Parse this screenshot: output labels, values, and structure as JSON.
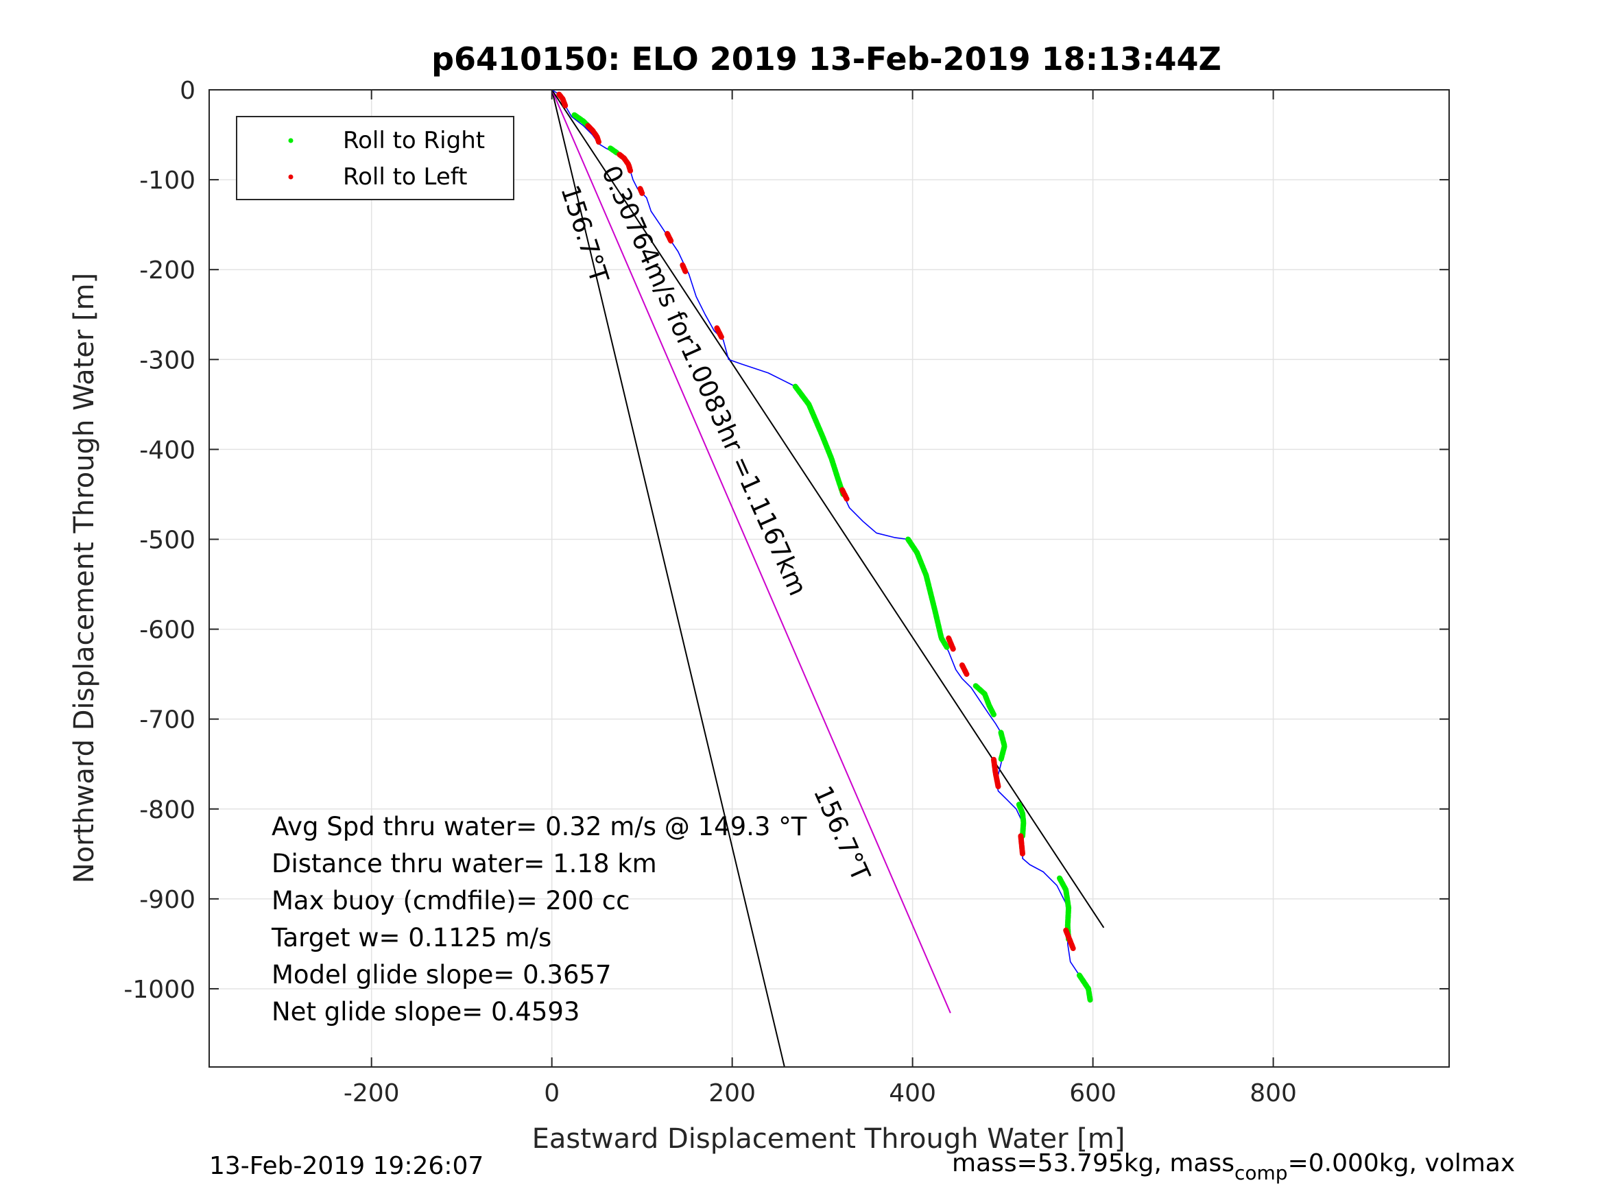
{
  "chart_data": {
    "type": "line",
    "title": "p6410150: ELO 2019 13-Feb-2019 18:13:44Z",
    "xlabel": "Eastward Displacement Through Water [m]",
    "ylabel": "Northward Displacement Through Water [m]",
    "xlim": [
      -380,
      995
    ],
    "ylim": [
      -1087,
      0
    ],
    "xticks": [
      -200,
      0,
      200,
      400,
      600,
      800
    ],
    "yticks": [
      0,
      -100,
      -200,
      -300,
      -400,
      -500,
      -600,
      -700,
      -800,
      -900,
      -1000
    ],
    "grid": true,
    "legend": {
      "placement": "top-left",
      "entries": [
        {
          "label": "Roll to Right",
          "color": "#00ee00"
        },
        {
          "label": "Roll to Left",
          "color": "#ee0000"
        }
      ]
    },
    "track": {
      "name": "",
      "color": "#0000ff",
      "x": [
        0,
        8,
        15,
        22,
        35,
        45,
        52,
        60,
        70,
        80,
        87,
        90,
        95,
        100,
        105,
        110,
        120,
        130,
        140,
        147,
        152,
        160,
        170,
        180,
        190,
        196,
        210,
        240,
        270,
        285,
        300,
        310,
        318,
        323,
        330,
        345,
        360,
        380,
        395,
        405,
        415,
        425,
        432,
        440,
        448,
        455,
        465,
        475,
        485,
        492,
        498,
        502,
        498,
        493,
        495,
        505,
        515,
        522,
        523,
        522,
        530,
        545,
        560,
        570,
        573,
        572,
        575,
        585,
        595,
        597
      ],
      "y": [
        0,
        -5,
        -18,
        -30,
        -40,
        -50,
        -60,
        -65,
        -70,
        -75,
        -90,
        -100,
        -110,
        -115,
        -120,
        -135,
        -150,
        -165,
        -180,
        -195,
        -205,
        -230,
        -250,
        -268,
        -278,
        -300,
        -305,
        -315,
        -330,
        -350,
        -385,
        -410,
        -435,
        -450,
        -465,
        -480,
        -493,
        -498,
        -500,
        -515,
        -540,
        -580,
        -610,
        -625,
        -645,
        -655,
        -665,
        -680,
        -695,
        -705,
        -715,
        -730,
        -750,
        -770,
        -780,
        -790,
        -800,
        -815,
        -840,
        -855,
        -862,
        -870,
        -885,
        -905,
        -930,
        -950,
        -970,
        -985,
        -1000,
        -1013
      ]
    },
    "roll_right_segments": [
      {
        "x": [
          25,
          35,
          40
        ],
        "y": [
          -28,
          -35,
          -40
        ]
      },
      {
        "x": [
          65,
          72
        ],
        "y": [
          -65,
          -70
        ]
      },
      {
        "x": [
          270,
          285,
          300,
          310,
          318,
          323
        ],
        "y": [
          -330,
          -350,
          -385,
          -410,
          -435,
          -450
        ]
      },
      {
        "x": [
          395,
          405,
          415,
          425,
          432,
          438
        ],
        "y": [
          -500,
          -515,
          -540,
          -580,
          -610,
          -620
        ]
      },
      {
        "x": [
          470,
          480,
          485,
          490
        ],
        "y": [
          -663,
          -672,
          -685,
          -695
        ]
      },
      {
        "x": [
          498,
          502,
          498
        ],
        "y": [
          -715,
          -730,
          -745
        ]
      },
      {
        "x": [
          518,
          522,
          523,
          522
        ],
        "y": [
          -795,
          -805,
          -815,
          -830
        ]
      },
      {
        "x": [
          563,
          570,
          573,
          572,
          573
        ],
        "y": [
          -877,
          -890,
          -910,
          -930,
          -945
        ]
      },
      {
        "x": [
          585,
          595,
          597
        ],
        "y": [
          -985,
          -1000,
          -1013
        ]
      }
    ],
    "roll_left_segments": [
      {
        "x": [
          8,
          12,
          15
        ],
        "y": [
          -5,
          -10,
          -18
        ]
      },
      {
        "x": [
          40,
          45,
          50,
          52
        ],
        "y": [
          -40,
          -45,
          -52,
          -58
        ]
      },
      {
        "x": [
          75,
          80,
          85,
          87
        ],
        "y": [
          -72,
          -76,
          -83,
          -90
        ]
      },
      {
        "x": [
          98,
          100
        ],
        "y": [
          -110,
          -115
        ]
      },
      {
        "x": [
          128,
          132
        ],
        "y": [
          -160,
          -168
        ]
      },
      {
        "x": [
          145,
          148
        ],
        "y": [
          -195,
          -202
        ]
      },
      {
        "x": [
          183,
          188
        ],
        "y": [
          -265,
          -275
        ]
      },
      {
        "x": [
          322,
          327
        ],
        "y": [
          -445,
          -455
        ]
      },
      {
        "x": [
          440,
          445
        ],
        "y": [
          -610,
          -622
        ]
      },
      {
        "x": [
          455,
          460
        ],
        "y": [
          -640,
          -650
        ]
      },
      {
        "x": [
          490,
          492,
          495
        ],
        "y": [
          -745,
          -760,
          -775
        ]
      },
      {
        "x": [
          520,
          522
        ],
        "y": [
          -830,
          -850
        ]
      },
      {
        "x": [
          570,
          578
        ],
        "y": [
          -935,
          -955
        ]
      }
    ],
    "reference_lines": [
      {
        "color": "#000000",
        "x": [
          0,
          258
        ],
        "y": [
          0,
          -1087
        ]
      },
      {
        "color": "#cc00cc",
        "x": [
          0,
          442
        ],
        "y": [
          0,
          -1027
        ]
      },
      {
        "color": "#000000",
        "x": [
          0,
          612
        ],
        "y": [
          0,
          -932
        ]
      }
    ],
    "annotations": [
      {
        "text": "156.7°T",
        "x": 10,
        "y": -110,
        "rotation": 72
      },
      {
        "text": "0.30764m/s for1.0083hr =1.1167km",
        "x": 55,
        "y": -90,
        "rotation": 66
      },
      {
        "text": "156.7°T",
        "x": 290,
        "y": -780,
        "rotation": 66
      }
    ],
    "stats": [
      "Avg Spd thru water=  0.32 m/s @ 149.3 °T",
      "Distance thru water=  1.18 km",
      "Max buoy (cmdfile)= 200 cc",
      "Target w= 0.1125 m/s",
      "Model glide slope= 0.3657",
      "Net glide slope= 0.4593"
    ],
    "footer_left": "13-Feb-2019 19:26:07",
    "footer_right_a": "mass=53.795kg, mass",
    "footer_right_sub": "comp",
    "footer_right_b": "=0.000kg, volmax"
  }
}
